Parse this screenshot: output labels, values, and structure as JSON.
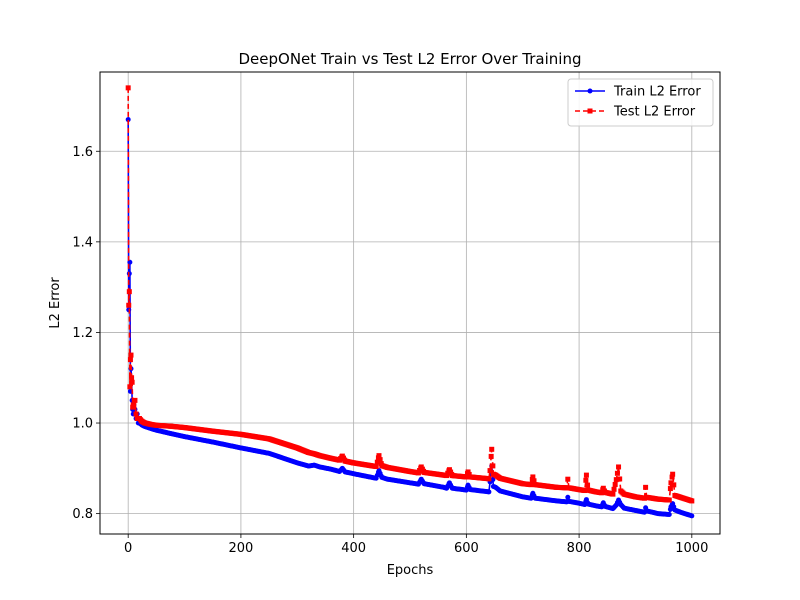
{
  "chart_data": {
    "type": "line",
    "title": "DeepONet Train vs Test L2 Error Over Training",
    "xlabel": "Epochs",
    "ylabel": "L2 Error",
    "xlim": [
      -50,
      1050
    ],
    "ylim": [
      0.755,
      1.775
    ],
    "xticks": [
      0,
      200,
      400,
      600,
      800,
      1000
    ],
    "yticks": [
      0.8,
      1.0,
      1.2,
      1.4,
      1.6
    ],
    "xtick_labels": [
      "0",
      "200",
      "400",
      "600",
      "800",
      "1000"
    ],
    "ytick_labels": [
      "0.8",
      "1.0",
      "1.2",
      "1.4",
      "1.6"
    ],
    "grid": true,
    "legend_position": "top-right",
    "series": [
      {
        "name": "Train L2 Error",
        "color": "#0000ff",
        "line_style": "solid",
        "marker": "circle",
        "x": [
          0,
          1,
          2,
          3,
          4,
          5,
          6,
          7,
          8,
          9,
          10,
          12,
          14,
          16,
          18,
          20,
          25,
          30,
          40,
          50,
          75,
          100,
          150,
          200,
          250,
          300,
          320,
          330,
          340,
          360,
          375,
          380,
          385,
          400,
          440,
          445,
          450,
          460,
          500,
          515,
          520,
          525,
          560,
          565,
          570,
          575,
          600,
          603,
          607,
          640,
          642,
          645,
          648,
          652,
          660,
          700,
          715,
          718,
          722,
          760,
          778,
          780,
          782,
          800,
          810,
          813,
          816,
          830,
          840,
          843,
          846,
          860,
          866,
          870,
          874,
          880,
          900,
          916,
          918,
          920,
          940,
          960,
          963,
          966,
          970,
          980,
          1000
        ],
        "y": [
          1.67,
          1.25,
          1.33,
          1.355,
          1.07,
          1.12,
          1.1,
          1.05,
          1.03,
          1.02,
          1.04,
          1.03,
          1.01,
          1.02,
          1.0,
          1.0,
          0.995,
          0.992,
          0.988,
          0.984,
          0.977,
          0.97,
          0.958,
          0.945,
          0.933,
          0.912,
          0.905,
          0.907,
          0.903,
          0.898,
          0.893,
          0.9,
          0.892,
          0.888,
          0.878,
          0.895,
          0.88,
          0.876,
          0.868,
          0.865,
          0.876,
          0.866,
          0.858,
          0.856,
          0.868,
          0.856,
          0.852,
          0.863,
          0.853,
          0.848,
          0.87,
          0.905,
          0.86,
          0.858,
          0.85,
          0.837,
          0.834,
          0.845,
          0.834,
          0.828,
          0.826,
          0.836,
          0.827,
          0.823,
          0.82,
          0.831,
          0.821,
          0.817,
          0.815,
          0.824,
          0.816,
          0.811,
          0.819,
          0.83,
          0.82,
          0.812,
          0.807,
          0.803,
          0.813,
          0.806,
          0.8,
          0.798,
          0.815,
          0.822,
          0.808,
          0.803,
          0.795
        ]
      },
      {
        "name": "Test L2 Error",
        "color": "#ff0000",
        "line_style": "dashed",
        "marker": "square",
        "x": [
          0,
          1,
          2,
          3,
          4,
          5,
          6,
          7,
          8,
          9,
          10,
          12,
          14,
          16,
          18,
          20,
          25,
          30,
          40,
          50,
          75,
          100,
          150,
          200,
          250,
          300,
          320,
          330,
          340,
          360,
          375,
          380,
          385,
          400,
          440,
          445,
          450,
          460,
          500,
          515,
          520,
          525,
          560,
          565,
          570,
          575,
          600,
          603,
          607,
          640,
          642,
          645,
          648,
          652,
          660,
          700,
          715,
          718,
          722,
          760,
          778,
          780,
          782,
          800,
          810,
          813,
          816,
          830,
          840,
          843,
          846,
          860,
          866,
          870,
          874,
          880,
          900,
          916,
          918,
          920,
          940,
          960,
          963,
          966,
          970,
          980,
          1000
        ],
        "y": [
          1.74,
          1.26,
          1.29,
          1.08,
          1.14,
          1.15,
          1.1,
          1.09,
          1.035,
          1.04,
          1.04,
          1.05,
          1.02,
          1.01,
          1.01,
          1.01,
          1.003,
          1.0,
          0.997,
          0.995,
          0.993,
          0.99,
          0.982,
          0.975,
          0.965,
          0.945,
          0.935,
          0.932,
          0.928,
          0.922,
          0.918,
          0.927,
          0.916,
          0.912,
          0.904,
          0.928,
          0.906,
          0.902,
          0.893,
          0.89,
          0.903,
          0.891,
          0.885,
          0.884,
          0.897,
          0.884,
          0.881,
          0.892,
          0.881,
          0.877,
          0.895,
          0.942,
          0.887,
          0.885,
          0.878,
          0.866,
          0.864,
          0.881,
          0.864,
          0.858,
          0.857,
          0.876,
          0.857,
          0.853,
          0.851,
          0.885,
          0.852,
          0.848,
          0.846,
          0.856,
          0.847,
          0.843,
          0.875,
          0.903,
          0.85,
          0.843,
          0.837,
          0.834,
          0.858,
          0.836,
          0.832,
          0.83,
          0.868,
          0.887,
          0.84,
          0.836,
          0.828
        ]
      }
    ]
  }
}
